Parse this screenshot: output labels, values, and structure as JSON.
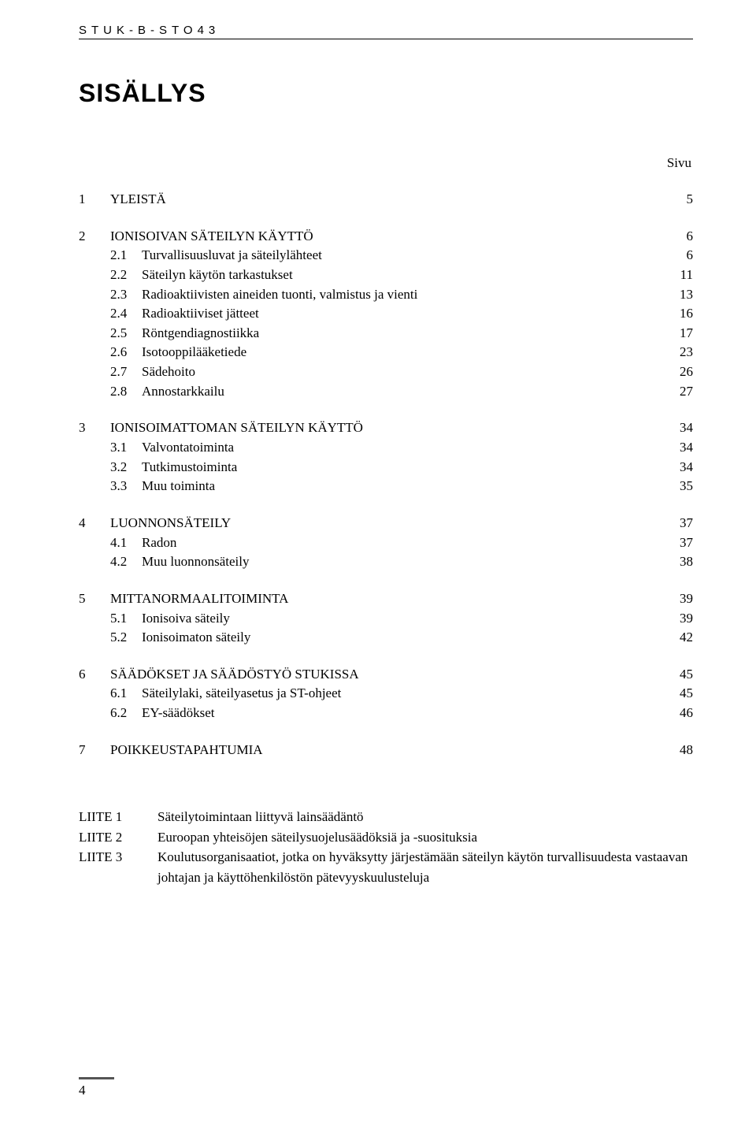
{
  "header": {
    "code": "STUK-B-STO43"
  },
  "title": "SISÄLLYS",
  "page_label": "Sivu",
  "toc": [
    {
      "num": "1",
      "text": "YLEISTÄ",
      "page": "5",
      "subs": []
    },
    {
      "num": "2",
      "text": "IONISOIVAN SÄTEILYN KÄYTTÖ",
      "page": "6",
      "subs": [
        {
          "num": "2.1",
          "text": "Turvallisuusluvat ja säteilylähteet",
          "page": "6"
        },
        {
          "num": "2.2",
          "text": "Säteilyn käytön tarkastukset",
          "page": "11"
        },
        {
          "num": "2.3",
          "text": "Radioaktiivisten aineiden tuonti, valmistus ja vienti",
          "page": "13"
        },
        {
          "num": "2.4",
          "text": "Radioaktiiviset jätteet",
          "page": "16"
        },
        {
          "num": "2.5",
          "text": "Röntgendiagnostiikka",
          "page": "17"
        },
        {
          "num": "2.6",
          "text": "Isotooppilääketiede",
          "page": "23"
        },
        {
          "num": "2.7",
          "text": "Sädehoito",
          "page": "26"
        },
        {
          "num": "2.8",
          "text": "Annostarkkailu",
          "page": "27"
        }
      ]
    },
    {
      "num": "3",
      "text": "IONISOIMATTOMAN SÄTEILYN KÄYTTÖ",
      "page": "34",
      "subs": [
        {
          "num": "3.1",
          "text": "Valvontatoiminta",
          "page": "34"
        },
        {
          "num": "3.2",
          "text": "Tutkimustoiminta",
          "page": "34"
        },
        {
          "num": "3.3",
          "text": "Muu toiminta",
          "page": "35"
        }
      ]
    },
    {
      "num": "4",
      "text": "LUONNONSÄTEILY",
      "page": "37",
      "subs": [
        {
          "num": "4.1",
          "text": "Radon",
          "page": "37"
        },
        {
          "num": "4.2",
          "text": "Muu luonnonsäteily",
          "page": "38"
        }
      ]
    },
    {
      "num": "5",
      "text": "MITTANORMAALITOIMINTA",
      "page": "39",
      "subs": [
        {
          "num": "5.1",
          "text": "Ionisoiva säteily",
          "page": "39"
        },
        {
          "num": "5.2",
          "text": "Ionisoimaton säteily",
          "page": "42"
        }
      ]
    },
    {
      "num": "6",
      "text": "SÄÄDÖKSET JA SÄÄDÖSTYÖ STUKISSA",
      "page": "45",
      "subs": [
        {
          "num": "6.1",
          "text": "Säteilylaki, säteilyasetus ja ST-ohjeet",
          "page": "45"
        },
        {
          "num": "6.2",
          "text": "EY-säädökset",
          "page": "46"
        }
      ]
    },
    {
      "num": "7",
      "text": "POIKKEUSTAPAHTUMIA",
      "page": "48",
      "subs": []
    }
  ],
  "appendices": [
    {
      "label": "LIITE 1",
      "text": "Säteilytoimintaan liittyvä lainsäädäntö"
    },
    {
      "label": "LIITE 2",
      "text": "Euroopan yhteisöjen säteilysuojelusäädöksiä ja -suosituksia"
    },
    {
      "label": "LIITE 3",
      "text": "Koulutusorganisaatiot, jotka on hyväksytty järjestämään säteilyn käytön turvallisuudesta vastaavan johtajan ja käyttöhenkilöstön pätevyyskuulusteluja"
    }
  ],
  "page_number": "4"
}
